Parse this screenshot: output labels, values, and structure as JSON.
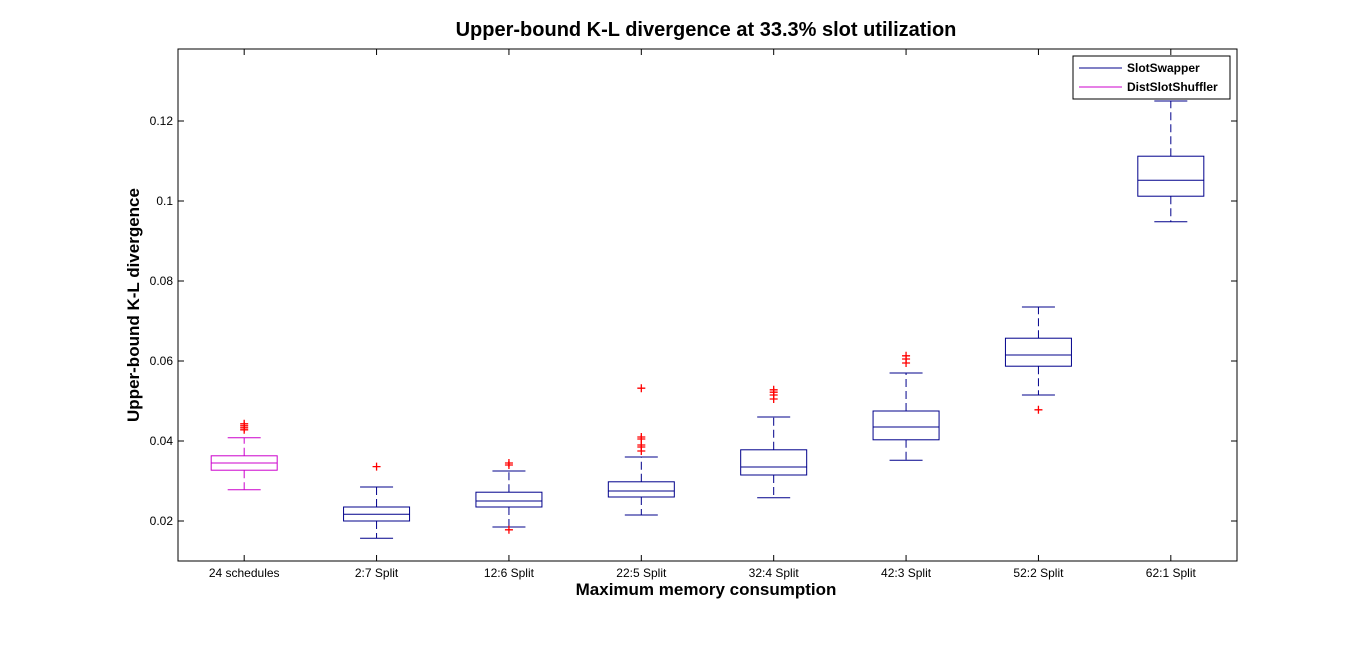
{
  "chart_data": {
    "type": "box",
    "title": "Upper-bound K-L divergence at 33.3% slot utilization",
    "xlabel": "Maximum memory consumption",
    "ylabel": "Upper-bound K-L divergence",
    "ylim": [
      0.01,
      0.138
    ],
    "yticks": [
      0.02,
      0.04,
      0.06,
      0.08,
      0.1,
      0.12
    ],
    "ytick_labels": [
      "0.02",
      "0.04",
      "0.06",
      "0.08",
      "0.1",
      "0.12"
    ],
    "categories": [
      "24 schedules",
      "2:7 Split",
      "12:6 Split",
      "22:5 Split",
      "32:4 Split",
      "42:3 Split",
      "52:2 Split",
      "62:1 Split"
    ],
    "legend": {
      "placement": "top-right",
      "entries": [
        {
          "name": "SlotSwapper",
          "color": "#00008B"
        },
        {
          "name": "DistSlotShuffler",
          "color": "#CC00CC"
        }
      ]
    },
    "outlier_color": "#FF0000",
    "boxes": [
      {
        "category": "24 schedules",
        "series": "DistSlotShuffler",
        "whisker_low": 0.0278,
        "q1": 0.0327,
        "median": 0.0345,
        "q3": 0.0363,
        "whisker_high": 0.0408,
        "outliers": [
          0.0428,
          0.0433,
          0.0438,
          0.0443
        ]
      },
      {
        "category": "2:7 Split",
        "series": "SlotSwapper",
        "whisker_low": 0.0157,
        "q1": 0.02,
        "median": 0.0217,
        "q3": 0.0235,
        "whisker_high": 0.0285,
        "outliers": [
          0.0336
        ]
      },
      {
        "category": "12:6 Split",
        "series": "SlotSwapper",
        "whisker_low": 0.0185,
        "q1": 0.0235,
        "median": 0.025,
        "q3": 0.0272,
        "whisker_high": 0.0325,
        "outliers": [
          0.0178,
          0.034,
          0.0345
        ]
      },
      {
        "category": "22:5 Split",
        "series": "SlotSwapper",
        "whisker_low": 0.0215,
        "q1": 0.026,
        "median": 0.0275,
        "q3": 0.0298,
        "whisker_high": 0.036,
        "outliers": [
          0.0375,
          0.0385,
          0.039,
          0.0405,
          0.041,
          0.0532
        ]
      },
      {
        "category": "32:4 Split",
        "series": "SlotSwapper",
        "whisker_low": 0.0258,
        "q1": 0.0315,
        "median": 0.0335,
        "q3": 0.0378,
        "whisker_high": 0.046,
        "outliers": [
          0.0505,
          0.0515,
          0.0522,
          0.0528
        ]
      },
      {
        "category": "42:3 Split",
        "series": "SlotSwapper",
        "whisker_low": 0.0352,
        "q1": 0.0403,
        "median": 0.0435,
        "q3": 0.0475,
        "whisker_high": 0.057,
        "outliers": [
          0.0595,
          0.0605,
          0.0613
        ]
      },
      {
        "category": "52:2 Split",
        "series": "SlotSwapper",
        "whisker_low": 0.0515,
        "q1": 0.0587,
        "median": 0.0615,
        "q3": 0.0657,
        "whisker_high": 0.0735,
        "outliers": [
          0.0478
        ]
      },
      {
        "category": "62:1 Split",
        "series": "SlotSwapper",
        "whisker_low": 0.0948,
        "q1": 0.1012,
        "median": 0.1052,
        "q3": 0.1112,
        "whisker_high": 0.125,
        "outliers": []
      }
    ]
  }
}
